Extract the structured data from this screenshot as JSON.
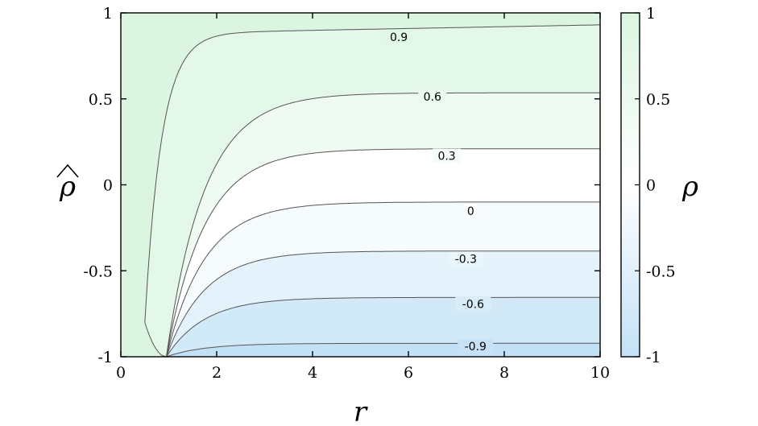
{
  "chart_data": {
    "type": "contour",
    "title": "",
    "xlabel": "r",
    "ylabel": "ρ̂",
    "colorbar_label": "ρ",
    "xlim": [
      0,
      10
    ],
    "ylim": [
      -1,
      1
    ],
    "x_ticks": [
      "0",
      "2",
      "4",
      "6",
      "8",
      "10"
    ],
    "y_ticks": [
      "1",
      "0.5",
      "0",
      "-0.5",
      "-1"
    ],
    "colorbar_ticks": [
      "1",
      "0.5",
      "0",
      "-0.5",
      "-1"
    ],
    "colorbar_range": [
      -1,
      1
    ],
    "colors": {
      "positive": "#dbf5e1",
      "zero": "#ffffff",
      "negative": "#c3e1f6",
      "contour_line": "#555555"
    },
    "contour_levels": [
      {
        "label": "0.9",
        "value": 0.9,
        "right_y": 0.88,
        "label_at": {
          "x": 5.8,
          "rho_hat": 0.859
        }
      },
      {
        "label": "0.6",
        "value": 0.6,
        "right_y": 0.535,
        "label_at": {
          "x": 6.5,
          "rho_hat": 0.512
        }
      },
      {
        "label": "0.3",
        "value": 0.3,
        "right_y": 0.21,
        "label_at": {
          "x": 6.8,
          "rho_hat": 0.168
        }
      },
      {
        "label": "0",
        "value": 0,
        "right_y": -0.1,
        "label_at": {
          "x": 7.3,
          "rho_hat": -0.152
        }
      },
      {
        "label": "-0.3",
        "value": -0.3,
        "right_y": -0.385,
        "label_at": {
          "x": 7.2,
          "rho_hat": -0.432
        }
      },
      {
        "label": "-0.6",
        "value": -0.6,
        "right_y": -0.655,
        "label_at": {
          "x": 7.35,
          "rho_hat": -0.694
        }
      },
      {
        "label": "-0.9",
        "value": -0.9,
        "right_y": -0.922,
        "label_at": {
          "x": 7.4,
          "rho_hat": -0.938
        }
      }
    ]
  }
}
